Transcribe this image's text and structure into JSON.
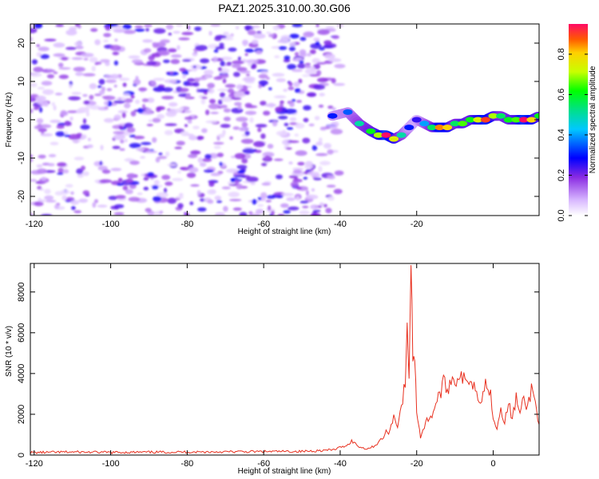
{
  "title": "PAZ1.2025.310.00.30.G06",
  "chart_data": [
    {
      "type": "heatmap",
      "xlabel": "Height of straight line (km)",
      "ylabel": "Frequency (Hz)",
      "xlim": [
        -121,
        12
      ],
      "ylim": [
        -25,
        25
      ],
      "x_ticks": [
        -120,
        -100,
        -80,
        -60,
        -40,
        -20
      ],
      "y_ticks": [
        -20,
        -10,
        0,
        10,
        20
      ],
      "colorbar": {
        "label": "Normalized spectral amplitude",
        "range": [
          0,
          0.95
        ],
        "ticks": [
          0.0,
          0.2,
          0.4,
          0.6,
          0.8
        ]
      },
      "noise_region_x": [
        -121,
        -40
      ],
      "signal_ridge": {
        "x": [
          -42,
          -38,
          -35,
          -32,
          -30,
          -28,
          -26,
          -24,
          -22,
          -20,
          -18,
          -16,
          -14,
          -12,
          -10,
          -8,
          -6,
          -4,
          -2,
          0,
          2,
          4,
          6,
          8,
          10,
          12
        ],
        "freq": [
          1,
          2,
          -1,
          -3,
          -4,
          -4,
          -5,
          -4,
          -2,
          0,
          -1,
          -2,
          -2,
          -2,
          -1,
          -1,
          0,
          0,
          0,
          1,
          1,
          0,
          0,
          0,
          0,
          1
        ],
        "amplitude": [
          0.3,
          0.35,
          0.5,
          0.6,
          0.7,
          0.95,
          0.75,
          0.5,
          0.3,
          0.25,
          0.4,
          0.55,
          0.85,
          0.8,
          0.55,
          0.65,
          0.6,
          0.75,
          0.9,
          0.7,
          0.55,
          0.6,
          0.65,
          0.95,
          0.8,
          0.6
        ]
      }
    },
    {
      "type": "line",
      "xlabel": "Height of straight line (km)",
      "ylabel": "SNR (10 * v/v)",
      "xlim": [
        -121,
        12
      ],
      "ylim": [
        0,
        9400
      ],
      "x_ticks": [
        -120,
        -100,
        -80,
        -60,
        -40,
        -20,
        0
      ],
      "y_ticks": [
        0,
        2000,
        4000,
        6000,
        8000
      ],
      "series": [
        {
          "color": "#e8301f",
          "x": [
            -121,
            -110,
            -100,
            -90,
            -80,
            -70,
            -60,
            -50,
            -42,
            -38,
            -37,
            -36,
            -35,
            -33,
            -31,
            -29,
            -28,
            -27,
            -26,
            -25,
            -24,
            -23,
            -22.5,
            -22,
            -21.5,
            -21,
            -20.5,
            -20,
            -19.5,
            -19,
            -18,
            -17,
            -16,
            -15,
            -14,
            -13,
            -12,
            -11,
            -10,
            -9,
            -8,
            -7,
            -6,
            -5,
            -4,
            -3,
            -2,
            -1,
            0,
            1,
            2,
            3,
            4,
            5,
            6,
            7,
            8,
            9,
            10,
            11,
            12
          ],
          "y": [
            120,
            150,
            130,
            140,
            150,
            160,
            170,
            180,
            250,
            500,
            700,
            550,
            400,
            300,
            450,
            800,
            1100,
            1200,
            1900,
            1500,
            2400,
            3500,
            6100,
            4000,
            9400,
            5000,
            4700,
            2200,
            1600,
            900,
            1400,
            1800,
            2000,
            2500,
            3000,
            3500,
            3200,
            3800,
            3600,
            4000,
            3700,
            3500,
            3900,
            3400,
            3000,
            2800,
            3500,
            3300,
            2000,
            1300,
            2400,
            1600,
            2500,
            1800,
            2800,
            2000,
            2700,
            2300,
            3300,
            2600,
            1500
          ]
        }
      ]
    }
  ]
}
